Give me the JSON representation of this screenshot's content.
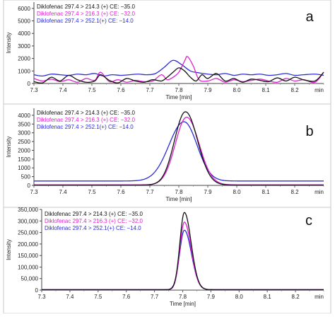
{
  "chart_data": [
    {
      "type": "line",
      "panel_label": "a",
      "xlabel": "Time [min]",
      "ylabel": "Intensity",
      "x_unit_label": "min",
      "xlim": [
        7.3,
        8.3
      ],
      "ylim": [
        0,
        6500
      ],
      "xticks": [
        "7.3",
        "7.4",
        "7.5",
        "7.6",
        "7.7",
        "7.8",
        "7.9",
        "8.0",
        "8.1",
        "8.2"
      ],
      "yticks": [
        "0",
        "1000",
        "2000",
        "3000",
        "4000",
        "5000",
        "6000"
      ],
      "legend_position": "top-left",
      "series": [
        {
          "name": "Diklofenac 297.4 > 214.3 (+) CE: −35.0",
          "color": "#111111",
          "x": [
            7.3,
            7.33,
            7.36,
            7.39,
            7.42,
            7.45,
            7.48,
            7.51,
            7.53,
            7.56,
            7.59,
            7.62,
            7.65,
            7.68,
            7.71,
            7.74,
            7.76,
            7.78,
            7.8,
            7.82,
            7.84,
            7.86,
            7.88,
            7.9,
            7.93,
            7.96,
            7.99,
            8.02,
            8.05,
            8.08,
            8.11,
            8.14,
            8.17,
            8.2,
            8.23,
            8.27,
            8.3
          ],
          "y": [
            150,
            50,
            500,
            200,
            650,
            300,
            100,
            200,
            700,
            250,
            50,
            400,
            200,
            100,
            300,
            200,
            500,
            900,
            1250,
            1000,
            500,
            200,
            700,
            400,
            800,
            200,
            400,
            100,
            350,
            250,
            150,
            450,
            200,
            500,
            300,
            200,
            900
          ]
        },
        {
          "name": "Diklofenac 297.4 > 216.3 (+) CE: −32.0",
          "color": "#e020d0",
          "x": [
            7.3,
            7.33,
            7.36,
            7.39,
            7.42,
            7.45,
            7.48,
            7.51,
            7.53,
            7.56,
            7.59,
            7.62,
            7.65,
            7.68,
            7.71,
            7.74,
            7.76,
            7.78,
            7.8,
            7.82,
            7.83,
            7.85,
            7.87,
            7.9,
            7.93,
            7.96,
            7.99,
            8.02,
            8.05,
            8.08,
            8.11,
            8.14,
            8.17,
            8.2,
            8.23,
            8.27,
            8.3
          ],
          "y": [
            400,
            200,
            350,
            150,
            300,
            100,
            400,
            250,
            900,
            150,
            300,
            100,
            250,
            150,
            200,
            700,
            300,
            500,
            900,
            1800,
            2150,
            1400,
            300,
            200,
            400,
            100,
            300,
            150,
            250,
            350,
            200,
            100,
            400,
            200,
            300,
            100,
            900
          ]
        },
        {
          "name": "Diklofenac 297.4 > 252.1(+) CE: −14.0",
          "color": "#2c2cd8",
          "x": [
            7.3,
            7.33,
            7.36,
            7.39,
            7.42,
            7.45,
            7.48,
            7.51,
            7.54,
            7.57,
            7.6,
            7.63,
            7.66,
            7.69,
            7.72,
            7.75,
            7.78,
            7.81,
            7.84,
            7.87,
            7.9,
            7.93,
            7.96,
            7.99,
            8.02,
            8.05,
            8.08,
            8.11,
            8.14,
            8.17,
            8.2,
            8.23,
            8.27,
            8.3
          ],
          "y": [
            700,
            600,
            750,
            700,
            650,
            750,
            700,
            800,
            600,
            700,
            650,
            700,
            750,
            700,
            800,
            1300,
            1850,
            1500,
            1000,
            850,
            750,
            700,
            800,
            650,
            750,
            700,
            750,
            650,
            700,
            800,
            650,
            700,
            750,
            650
          ]
        }
      ]
    },
    {
      "type": "line",
      "panel_label": "b",
      "xlabel": "Time [min]",
      "ylabel": "Intensity",
      "x_unit_label": "min",
      "xlim": [
        7.3,
        8.3
      ],
      "ylim": [
        0,
        4400
      ],
      "xticks": [
        "7.3",
        "7.4",
        "7.5",
        "7.6",
        "7.7",
        "7.8",
        "7.9",
        "8.0",
        "8.1",
        "8.2"
      ],
      "yticks": [
        "0",
        "500",
        "1000",
        "1500",
        "2000",
        "2500",
        "3000",
        "3500",
        "4000"
      ],
      "legend_position": "top-left",
      "series": [
        {
          "name": "Diklofenac 297.4 > 214.3 (+) CE: −35.0",
          "color": "#111111",
          "peak": {
            "x0": 7.823,
            "amp": 4180,
            "sigma_left": 0.038,
            "sigma_right": 0.042,
            "base": 20
          }
        },
        {
          "name": "Diklofenac 297.4 > 216.3 (+) CE: −32.0",
          "color": "#e020d0",
          "peak": {
            "x0": 7.827,
            "amp": 3860,
            "sigma_left": 0.039,
            "sigma_right": 0.043,
            "base": 30
          }
        },
        {
          "name": "Diklofenac 297.4 > 252.1(+) CE: −14.0",
          "color": "#2c2cd8",
          "peak": {
            "x0": 7.818,
            "amp": 3380,
            "sigma_left": 0.052,
            "sigma_right": 0.045,
            "base": 250
          }
        }
      ]
    },
    {
      "type": "line",
      "panel_label": "c",
      "xlabel": "Time [min]",
      "ylabel": "Intensity",
      "x_unit_label": "min",
      "xlim": [
        7.3,
        8.3
      ],
      "ylim": [
        0,
        350000
      ],
      "xticks": [
        "7.3",
        "7.4",
        "7.5",
        "7.6",
        "7.7",
        "7.8",
        "7.9",
        "8.0",
        "8.1",
        "8.2"
      ],
      "yticks": [
        "0",
        "50,000",
        "100,000",
        "150,000",
        "200,000",
        "250,000",
        "300,000",
        "350,000"
      ],
      "legend_position": "top-left",
      "series": [
        {
          "name": "Diklofenac 297.4 > 214.3 (+) CE: −35.0",
          "color": "#111111",
          "peak": {
            "x0": 7.806,
            "amp": 335000,
            "sigma_left": 0.016,
            "sigma_right": 0.024,
            "base": 2000
          }
        },
        {
          "name": "Diklofenac 297.4 > 216.3 (+) CE: −32.0",
          "color": "#e020d0",
          "peak": {
            "x0": 7.806,
            "amp": 293000,
            "sigma_left": 0.016,
            "sigma_right": 0.024,
            "base": 2000
          }
        },
        {
          "name": "Diklofenac 297.4 > 252.1(+) CE: −14.0",
          "color": "#2c2cd8",
          "peak": {
            "x0": 7.806,
            "amp": 258000,
            "sigma_left": 0.017,
            "sigma_right": 0.025,
            "base": 2000
          }
        }
      ]
    }
  ]
}
